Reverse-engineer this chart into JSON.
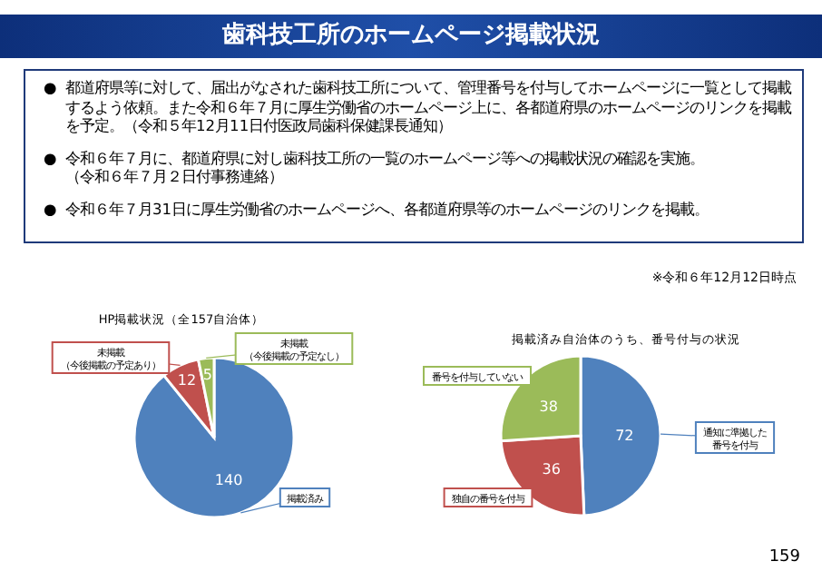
{
  "chart_data": [
    {
      "type": "other",
      "title": "歯科技工所のホームページ掲載状況",
      "annotations": [
        "●都道府県等に対して、届出がなされた歯科技工所について、管理番号を付与してホームページに一覧として掲載するよう依頼。また令和６年７月に厚生労働省のホームページ上に、各都道府県のホームページのリンクを掲載を予定。（令和５年12月11日付医政局歯科保健課長通知）",
        "●令和６年７月に、都道府県に対し歯科技工所の一覧のホームページ等への掲載状況の確認を実施。（令和６年７月２日付事務連絡）",
        "●令和６年７月31日に厚生労働省のホームページへ、各都道府県等のホームページのリンクを掲載。",
        "※令和６年12月12日時点",
        "159"
      ]
    },
    {
      "type": "pie",
      "title": "HP掲載状況（全157自治体）",
      "categories": [
        "掲載済み",
        "未掲載（今後掲載の予定あり）",
        "未掲載（今後掲載の予定なし）"
      ],
      "values": [
        140,
        12,
        5
      ],
      "colors": [
        "#4f81bd",
        "#c0504d",
        "#9bbb59"
      ],
      "data_labels": true
    },
    {
      "type": "pie",
      "title": "掲載済み自治体のうち、番号付与の状況",
      "categories": [
        "通知に準拠した番号を付与",
        "独自の番号を付与",
        "番号を付与していない"
      ],
      "values": [
        72,
        36,
        38
      ],
      "colors": [
        "#4f81bd",
        "#c0504d",
        "#9bbb59"
      ],
      "data_labels": true
    }
  ]
}
